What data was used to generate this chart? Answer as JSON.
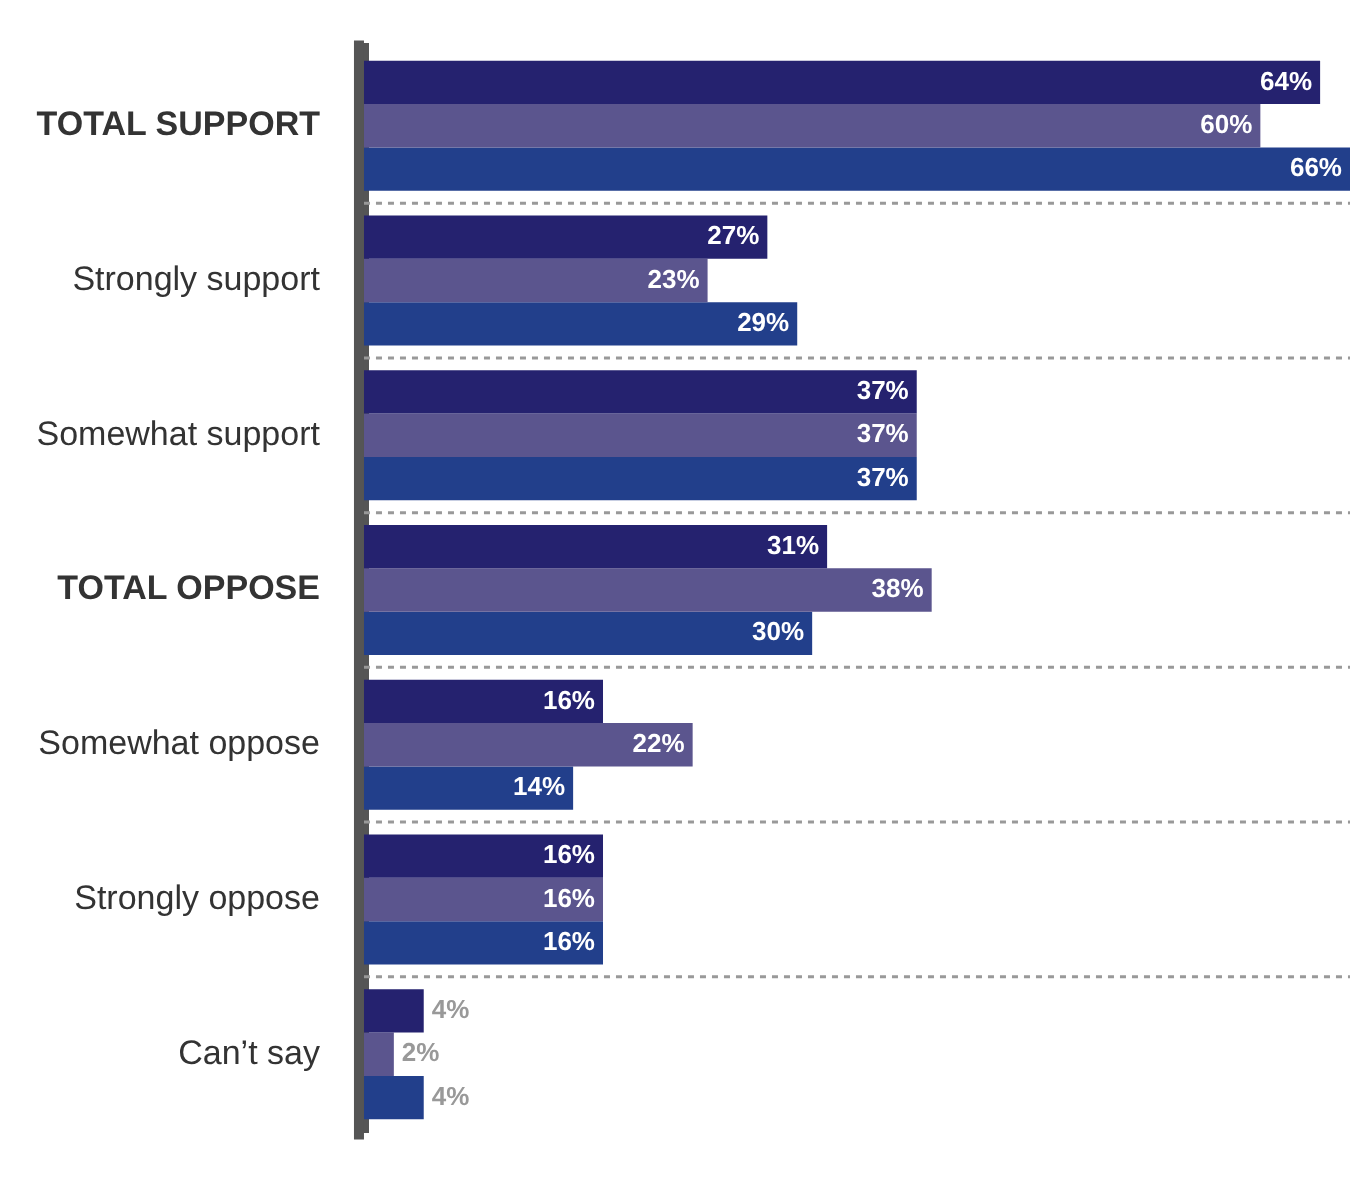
{
  "chart_data": {
    "type": "bar",
    "orientation": "horizontal",
    "categories": [
      "TOTAL SUPPORT",
      "Strongly support",
      "Somewhat support",
      "TOTAL OPPOSE",
      "Somewhat oppose",
      "Strongly oppose",
      "Can’t say"
    ],
    "series": [
      {
        "color": "#25226f",
        "values": [
          64,
          27,
          37,
          31,
          16,
          16,
          4
        ],
        "value_labels": [
          "64%",
          "27%",
          "37%",
          "31%",
          "16%",
          "16%",
          "4%"
        ]
      },
      {
        "color": "#5b558e",
        "values": [
          60,
          23,
          37,
          38,
          22,
          16,
          2
        ],
        "value_labels": [
          "60%",
          "23%",
          "37%",
          "38%",
          "22%",
          "16%",
          "2%"
        ]
      },
      {
        "color": "#223f8b",
        "values": [
          66,
          29,
          37,
          30,
          14,
          16,
          4
        ],
        "value_labels": [
          "66%",
          "29%",
          "37%",
          "30%",
          "14%",
          "16%",
          "4%"
        ]
      }
    ],
    "tick_labels": "y",
    "grid": "y",
    "legend": false
  }
}
